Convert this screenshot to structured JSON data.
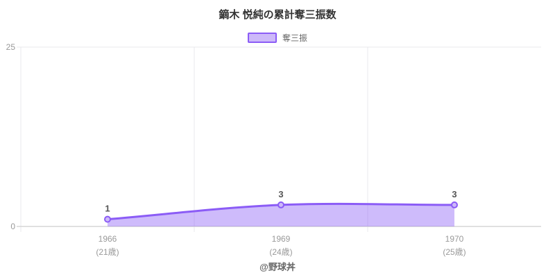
{
  "title": "鏑木 悦純の累計奪三振数",
  "legend": {
    "label": "奪三振"
  },
  "footer": "@野球丼",
  "chart_data": {
    "type": "area",
    "title": "鏑木 悦純の累計奪三振数",
    "categories": [
      "1966",
      "1969",
      "1970"
    ],
    "category_sublabels": [
      "(21歳)",
      "(24歳)",
      "(25歳)"
    ],
    "series": [
      {
        "name": "奪三振",
        "values": [
          1,
          3,
          3
        ]
      }
    ],
    "data_labels": [
      "1",
      "3",
      "3"
    ],
    "ylim": [
      0,
      25
    ],
    "yticks": [
      0,
      25
    ],
    "legend_position": "top",
    "grid": "band-boundary vertical lines + top gridline",
    "colors": {
      "line": "#8b5cf6",
      "fill": "#8b5cf6",
      "fill_opacity": 0.42,
      "marker_fill": "#cdb9f9",
      "grid": "#e9e9ec",
      "axis": "#d6d6d6",
      "tick_label": "#999999",
      "data_label": "#555555",
      "title": "#333333"
    }
  }
}
